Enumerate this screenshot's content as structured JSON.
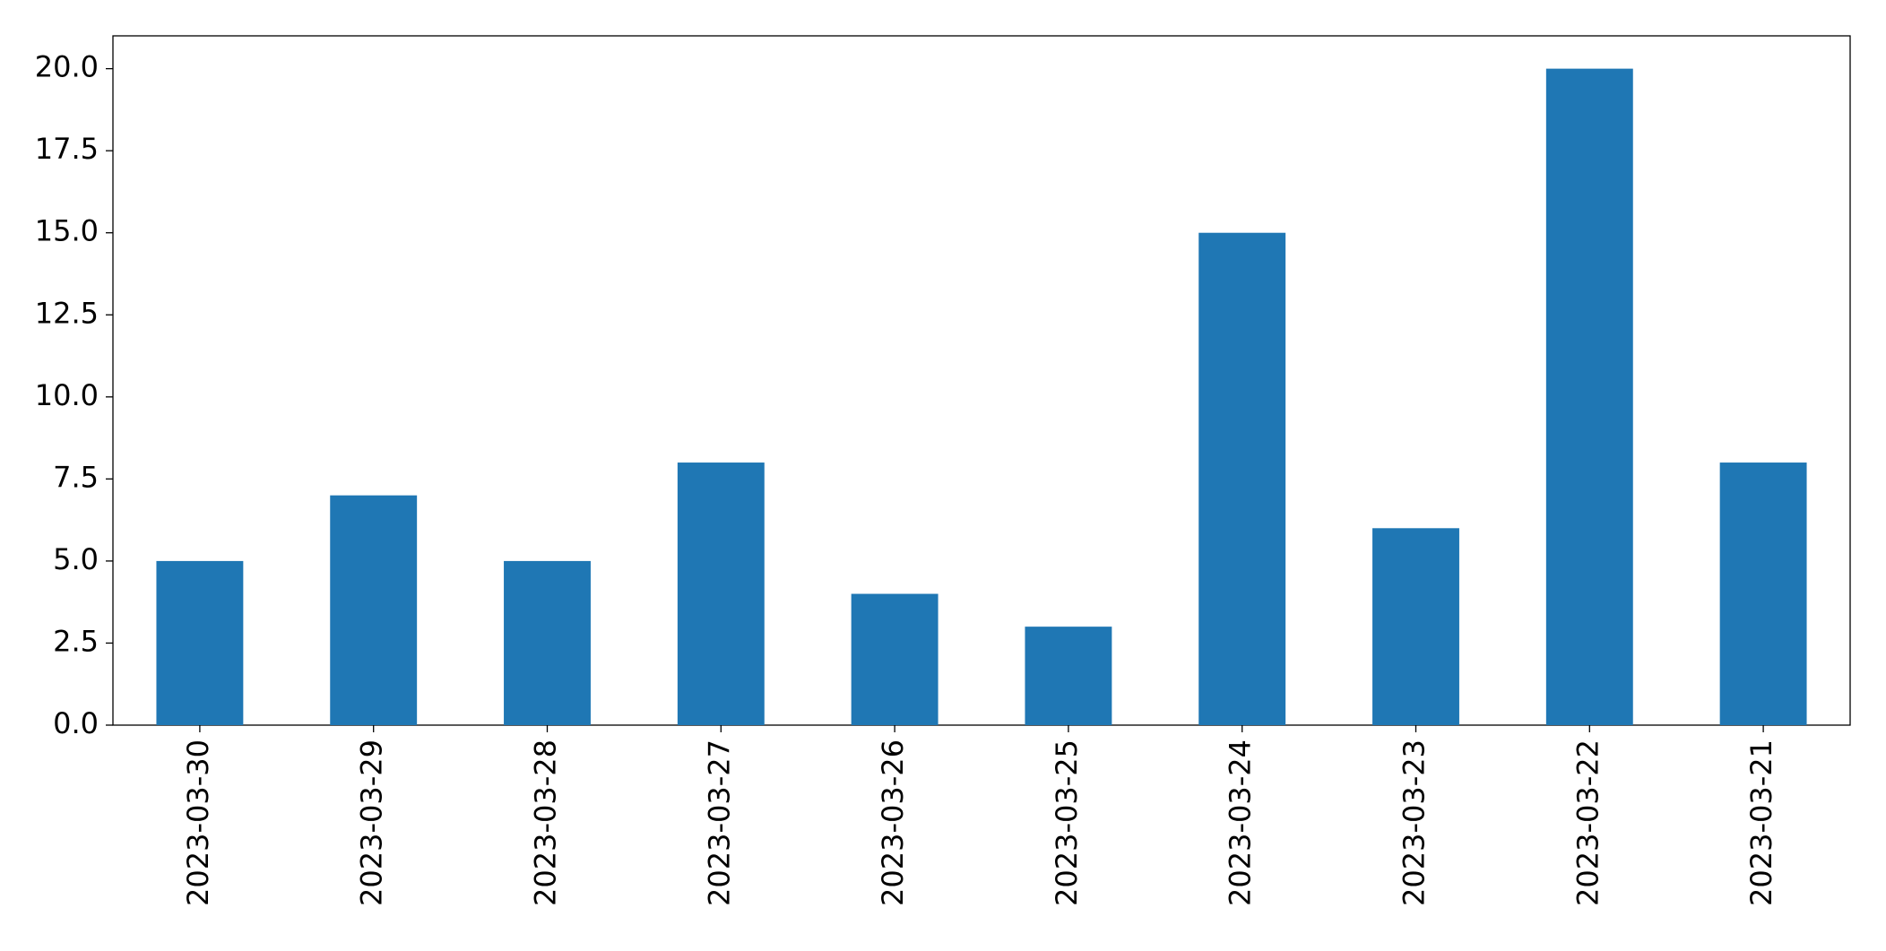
{
  "chart_data": {
    "type": "bar",
    "categories": [
      "2023-03-30",
      "2023-03-29",
      "2023-03-28",
      "2023-03-27",
      "2023-03-26",
      "2023-03-25",
      "2023-03-24",
      "2023-03-23",
      "2023-03-22",
      "2023-03-21"
    ],
    "values": [
      5,
      7,
      5,
      8,
      4,
      3,
      15,
      6,
      20,
      8
    ],
    "color": "#1f77b4",
    "ylim": [
      0,
      21
    ],
    "yticks": [
      {
        "value": 0,
        "label": "0.0"
      },
      2.5,
      {
        "value": 5,
        "label": "5.0"
      },
      7.5,
      {
        "value": 10,
        "label": "10.0"
      },
      12.5,
      {
        "value": 15,
        "label": "15.0"
      },
      17.5,
      {
        "value": 20,
        "label": "20.0"
      }
    ],
    "grid": false
  }
}
